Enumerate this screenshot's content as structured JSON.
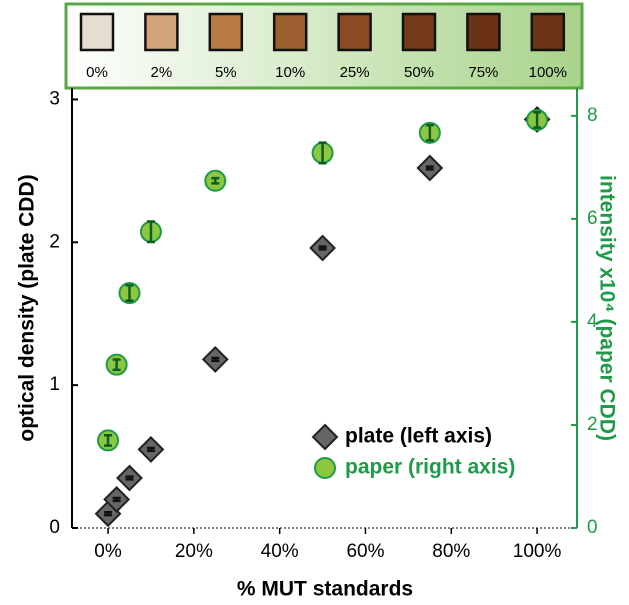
{
  "chart_data": {
    "type": "scatter",
    "xlabel": "% MUT standards",
    "ylabel": "optical density (plate CDD)",
    "y2label": "intensity x10⁴ (paper CDD)",
    "xlim": [
      -8.4,
      109.3
    ],
    "xticks": [
      {
        "value": 0,
        "label": "0%"
      },
      {
        "value": 20,
        "label": "20%"
      },
      {
        "value": 40,
        "label": "40%"
      },
      {
        "value": 60,
        "label": "60%"
      },
      {
        "value": 80,
        "label": "80%"
      },
      {
        "value": 100,
        "label": "100%"
      }
    ],
    "ylim": [
      0,
      3.08
    ],
    "yticks": [
      0,
      1,
      2,
      3
    ],
    "y2lim": [
      0,
      8.54
    ],
    "y2ticks": [
      0,
      2,
      4,
      6,
      8
    ],
    "y2color": "#1f9a48",
    "legend": "lower right",
    "strip": {
      "labels": [
        "0%",
        "2%",
        "5%",
        "10%",
        "25%",
        "50%",
        "75%",
        "100%"
      ],
      "colors": [
        "#e6ddd0",
        "#d3a47a",
        "#b97a45",
        "#9e5f30",
        "#8a4a22",
        "#74391a",
        "#6a3216",
        "#6d3518"
      ]
    },
    "series": [
      {
        "name": "plate (left axis)",
        "color": "#666666",
        "marker": "diamond",
        "x": [
          0,
          2,
          5,
          10,
          25,
          50,
          75,
          100
        ],
        "values": [
          0.1,
          0.2,
          0.35,
          0.55,
          1.18,
          1.96,
          2.52,
          2.86
        ],
        "errors": [
          0.01,
          0.01,
          0.01,
          0.01,
          0.01,
          0.01,
          0.01,
          0.03
        ]
      },
      {
        "name": "paper (right axis)",
        "color": "#8dc63f",
        "marker": "circle",
        "axis": "y2",
        "x": [
          0,
          2,
          5,
          10,
          25,
          50,
          75,
          100
        ],
        "values": [
          1.7,
          3.17,
          4.56,
          5.75,
          6.74,
          7.28,
          7.67,
          7.92
        ],
        "errors": [
          0.1,
          0.1,
          0.15,
          0.2,
          0.05,
          0.2,
          0.15,
          0.15
        ]
      }
    ]
  }
}
